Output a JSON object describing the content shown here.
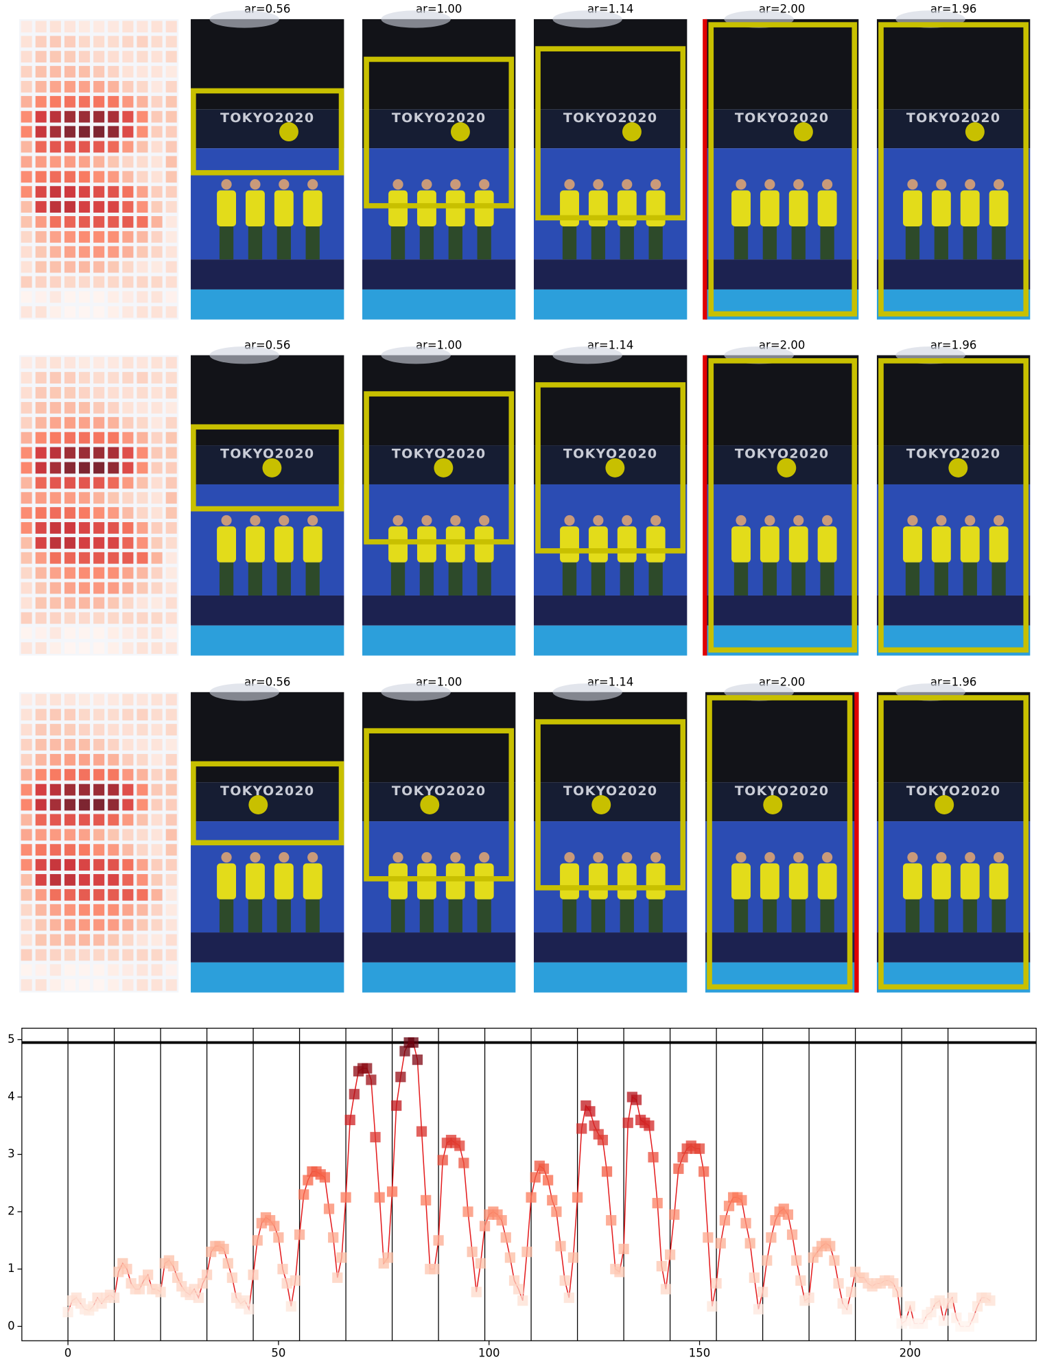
{
  "chart_data": {
    "type": "line",
    "x": [
      0,
      1,
      2,
      3,
      4,
      5,
      6,
      7,
      8,
      9,
      10,
      11,
      12,
      13,
      14,
      15,
      16,
      17,
      18,
      19,
      20,
      21,
      22,
      23,
      24,
      25,
      26,
      27,
      28,
      29,
      30,
      31,
      32,
      33,
      34,
      35,
      36,
      37,
      38,
      39,
      40,
      41,
      42,
      43,
      44,
      45,
      46,
      47,
      48,
      49,
      50,
      51,
      52,
      53,
      54,
      55,
      56,
      57,
      58,
      59,
      60,
      61,
      62,
      63,
      64,
      65,
      66,
      67,
      68,
      69,
      70,
      71,
      72,
      73,
      74,
      75,
      76,
      77,
      78,
      79,
      80,
      81,
      82,
      83,
      84,
      85,
      86,
      87,
      88,
      89,
      90,
      91,
      92,
      93,
      94,
      95,
      96,
      97,
      98,
      99,
      100,
      101,
      102,
      103,
      104,
      105,
      106,
      107,
      108,
      109,
      110,
      111,
      112,
      113,
      114,
      115,
      116,
      117,
      118,
      119,
      120,
      121,
      122,
      123,
      124,
      125,
      126,
      127,
      128,
      129,
      130,
      131,
      132,
      133,
      134,
      135,
      136,
      137,
      138,
      139,
      140,
      141,
      142,
      143,
      144,
      145,
      146,
      147,
      148,
      149,
      150,
      151,
      152,
      153,
      154,
      155,
      156,
      157,
      158,
      159,
      160,
      161,
      162,
      163,
      164,
      165,
      166,
      167,
      168,
      169,
      170,
      171,
      172,
      173,
      174,
      175,
      176,
      177,
      178,
      179,
      180,
      181,
      182,
      183,
      184,
      185,
      186,
      187,
      188,
      189,
      190,
      191,
      192,
      193,
      194,
      195,
      196,
      197,
      198,
      199,
      200,
      201,
      202,
      203,
      204,
      205,
      206,
      207,
      208,
      209,
      210,
      211,
      212,
      213,
      214,
      215,
      216,
      217,
      218,
      219
    ],
    "series": [
      {
        "color": "#e31a1c",
        "values": [
          0.25,
          0.45,
          0.5,
          0.4,
          0.3,
          0.28,
          0.35,
          0.5,
          0.4,
          0.5,
          0.55,
          0.5,
          0.95,
          1.1,
          1.0,
          0.75,
          0.65,
          0.65,
          0.8,
          0.9,
          0.65,
          0.65,
          0.6,
          1.1,
          1.15,
          1.05,
          0.85,
          0.7,
          0.6,
          0.55,
          0.65,
          0.5,
          0.75,
          0.9,
          1.3,
          1.4,
          1.4,
          1.35,
          1.1,
          0.85,
          0.5,
          0.4,
          0.45,
          0.3,
          0.9,
          1.5,
          1.8,
          1.9,
          1.85,
          1.75,
          1.55,
          1.0,
          0.75,
          0.35,
          0.8,
          1.6,
          2.3,
          2.55,
          2.7,
          2.7,
          2.65,
          2.6,
          2.05,
          1.55,
          0.85,
          1.2,
          2.25,
          3.6,
          4.05,
          4.45,
          4.5,
          4.5,
          4.3,
          3.3,
          2.25,
          1.1,
          1.2,
          2.35,
          3.85,
          4.35,
          4.8,
          4.95,
          4.95,
          4.65,
          3.4,
          2.2,
          1.0,
          1.0,
          1.5,
          2.9,
          3.2,
          3.25,
          3.2,
          3.15,
          2.85,
          2.0,
          1.3,
          0.6,
          1.1,
          1.75,
          1.95,
          2.0,
          1.95,
          1.85,
          1.55,
          1.2,
          0.8,
          0.65,
          0.45,
          1.3,
          2.25,
          2.6,
          2.8,
          2.75,
          2.55,
          2.2,
          2.0,
          1.4,
          0.8,
          0.5,
          1.2,
          2.25,
          3.45,
          3.85,
          3.75,
          3.5,
          3.35,
          3.25,
          2.7,
          1.85,
          1.0,
          0.95,
          1.35,
          3.55,
          4.0,
          3.95,
          3.6,
          3.55,
          3.5,
          2.95,
          2.15,
          1.05,
          0.65,
          1.25,
          1.95,
          2.75,
          2.95,
          3.1,
          3.15,
          3.1,
          3.1,
          2.7,
          1.55,
          0.35,
          0.75,
          1.45,
          1.85,
          2.1,
          2.25,
          2.25,
          2.2,
          1.8,
          1.45,
          0.85,
          0.3,
          0.6,
          1.15,
          1.55,
          1.85,
          2.0,
          2.05,
          1.95,
          1.6,
          1.15,
          0.8,
          0.45,
          0.5,
          1.2,
          1.3,
          1.4,
          1.45,
          1.4,
          1.15,
          0.75,
          0.4,
          0.3,
          0.6,
          0.95,
          0.85,
          0.85,
          0.75,
          0.7,
          0.75,
          0.75,
          0.8,
          0.8,
          0.75,
          0.6,
          0.05,
          0.1,
          0.35,
          0.05,
          0.05,
          0.05,
          0.2,
          0.25,
          0.4,
          0.45,
          0.1,
          0.4,
          0.5,
          0.15,
          0.0,
          0.0,
          0.0,
          0.15,
          0.35,
          0.5,
          0.5,
          0.45
        ]
      }
    ],
    "xlim": [
      -10.95,
      229.95
    ],
    "ylim": [
      -0.25,
      5.2
    ],
    "xticks": [
      0,
      50,
      100,
      150,
      200
    ],
    "yticks": [
      0,
      1,
      2,
      3,
      4,
      5
    ],
    "hline": 4.95,
    "vlines": [
      0,
      11,
      22,
      33,
      44,
      55,
      66,
      77,
      88,
      99,
      110,
      121,
      132,
      143,
      154,
      165,
      176,
      187,
      198,
      209
    ],
    "marker_cmap": "Reds"
  },
  "panels": {
    "image_text": "TOKYO2020",
    "rows": [
      {
        "titles": [
          "ar=0.56",
          "ar=1.00",
          "ar=1.14",
          "ar=2.00",
          "ar=1.96"
        ]
      },
      {
        "titles": [
          "ar=0.56",
          "ar=1.00",
          "ar=1.14",
          "ar=2.00",
          "ar=1.96"
        ]
      },
      {
        "titles": [
          "ar=0.56",
          "ar=1.00",
          "ar=1.14",
          "ar=2.00",
          "ar=1.96"
        ]
      }
    ]
  }
}
